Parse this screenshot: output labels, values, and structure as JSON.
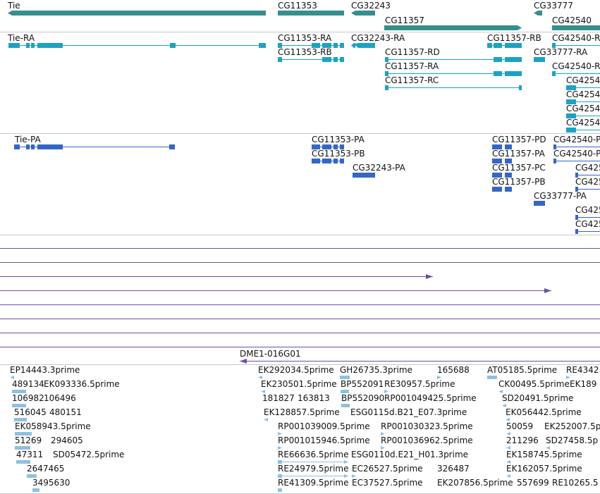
{
  "colors": {
    "gene": "#33908f",
    "transcript": "#1aa3c5",
    "protein": "#3466c6",
    "align": "#6b4fa8",
    "est": "#8ec0e0",
    "separator": "#c8c8c8"
  },
  "tracks": {
    "genes": {
      "features": [
        {
          "label": "Tie"
        },
        {
          "label": "CG11353"
        },
        {
          "label": "CG32243"
        },
        {
          "label": "CG11357"
        },
        {
          "label": "CG33777"
        },
        {
          "label": "CG42540"
        }
      ]
    },
    "transcripts": {
      "features": [
        {
          "label": "Tie-RA"
        },
        {
          "label": "CG11353-RA"
        },
        {
          "label": "CG32243-RA"
        },
        {
          "label": "CG11357-RB"
        },
        {
          "label": "CG42540-R"
        },
        {
          "label": "CG11353-RB"
        },
        {
          "label": "CG11357-RD"
        },
        {
          "label": "CG33777-RA"
        },
        {
          "label": "CG11357-RA"
        },
        {
          "label": "CG42540-R"
        },
        {
          "label": "CG11357-RC"
        },
        {
          "label": "CG4254"
        },
        {
          "label": "CG4254"
        },
        {
          "label": "CG4254"
        },
        {
          "label": "CG4254"
        }
      ]
    },
    "proteins": {
      "features": [
        {
          "label": "Tie-PA"
        },
        {
          "label": "CG11353-PA"
        },
        {
          "label": "CG11357-PD"
        },
        {
          "label": "CG42540-P"
        },
        {
          "label": "CG11353-PB"
        },
        {
          "label": "CG11357-PA"
        },
        {
          "label": "CG42540-P"
        },
        {
          "label": "CG32243-PA"
        },
        {
          "label": "CG11357-PC"
        },
        {
          "label": "CG425"
        },
        {
          "label": "CG11357-PB"
        },
        {
          "label": "CG425"
        },
        {
          "label": "CG33777-PA"
        },
        {
          "label": "CG425"
        },
        {
          "label": "CG425"
        }
      ]
    },
    "alignments": {
      "clone_label": "DME1-016G01"
    },
    "ests": {
      "labels": [
        "EP14443.3prime",
        "EK292034.5prime",
        "GH26735.3prime",
        "165688",
        "AT05185.5prime",
        "RE4342",
        "489134",
        "EK093336.5prime",
        "EK230501.5prime",
        "BP552091",
        "RE30957.5prime",
        "CK00495.5prime",
        "EK189",
        "106982",
        "106496",
        "181827",
        "163813",
        "BP552090",
        "RP001049425.5prime",
        "SD20491.5prime",
        "516045",
        "480151",
        "EK128857.5prime",
        "ESG0115d.B21_E07.3prime",
        "EK056442.5prime",
        "EK058943.5prime",
        "RP001039009.5prime",
        "RP001030323.5prime",
        "50059",
        "EK252007.5p",
        "51269",
        "294605",
        "RP001015946.5prime",
        "RP001036962.5prime",
        "211296",
        "SD27458.5p",
        "47311",
        "SD05472.5prime",
        "RE66636.5prime",
        "ESG0110d.E21_H01.3prime",
        "EK158745.5prime",
        "2647465",
        "RE24979.5prime",
        "EC26527.5prime",
        "326487",
        "EK162057.5prime",
        "3495630",
        "RE41309.5prime",
        "EC37527.5prime",
        "EK207856.5prime",
        "557699",
        "RE10265.5"
      ]
    }
  }
}
